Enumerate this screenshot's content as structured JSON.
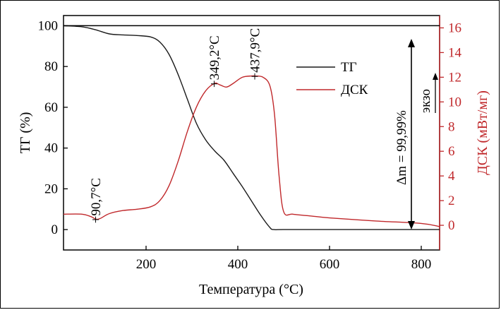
{
  "chart_data": {
    "type": "line",
    "xlabel": "Температура (°C)",
    "ylabel": "ТГ (%)",
    "y2label": "ДСК (мВт/мг)",
    "xlim": [
      20,
      840
    ],
    "ylim": [
      -10,
      105
    ],
    "y2lim": [
      -2,
      17
    ],
    "x_ticks": [
      200,
      400,
      600,
      800
    ],
    "y_ticks": [
      0,
      20,
      40,
      60,
      80,
      100
    ],
    "y2_ticks": [
      0,
      2,
      4,
      6,
      8,
      10,
      12,
      14,
      16
    ],
    "legend": {
      "position": "top-center",
      "entries": [
        "ТГ",
        "ДСК"
      ]
    },
    "colors": {
      "tg": "#1a1a1a",
      "dsc": "#c0282b"
    },
    "series": [
      {
        "name": "ТГ",
        "axis": "left",
        "x": [
          20,
          60,
          90,
          120,
          150,
          180,
          210,
          230,
          250,
          270,
          290,
          310,
          330,
          350,
          370,
          390,
          410,
          430,
          450,
          470,
          478,
          500,
          600,
          700,
          840
        ],
        "y": [
          100,
          99.5,
          98,
          96,
          95.5,
          95.2,
          94.5,
          92,
          86,
          76,
          64,
          52,
          44,
          38.5,
          34,
          27.5,
          21,
          14,
          7,
          1,
          0,
          0,
          0,
          0,
          0
        ]
      },
      {
        "name": "ДСК",
        "axis": "right",
        "x": [
          20,
          60,
          80,
          90.7,
          100,
          120,
          150,
          180,
          210,
          230,
          250,
          270,
          290,
          310,
          330,
          349.2,
          360,
          375,
          390,
          410,
          430,
          437.9,
          455,
          470,
          480,
          490,
          500,
          520,
          560,
          600,
          700,
          800,
          840
        ],
        "y": [
          0.9,
          0.9,
          0.7,
          0.5,
          0.55,
          0.95,
          1.2,
          1.3,
          1.5,
          2.0,
          3.2,
          5.2,
          7.6,
          9.6,
          10.9,
          11.5,
          11.4,
          11.2,
          11.5,
          12.0,
          12.1,
          12.1,
          12.0,
          11.3,
          9.0,
          4.0,
          1.1,
          0.9,
          0.75,
          0.6,
          0.35,
          0.15,
          -0.1
        ]
      }
    ],
    "annotations": [
      {
        "text": "+90,7°C",
        "x": 90.7,
        "series": "ДСК"
      },
      {
        "text": "+349,2°C",
        "x": 349.2,
        "series": "ДСК"
      },
      {
        "text": "+437,9°C",
        "x": 437.9,
        "series": "ДСК"
      },
      {
        "text": "Δm = 99,99%",
        "kind": "mass-loss-arrow"
      },
      {
        "text": "экзо",
        "kind": "exo-arrow"
      }
    ]
  }
}
